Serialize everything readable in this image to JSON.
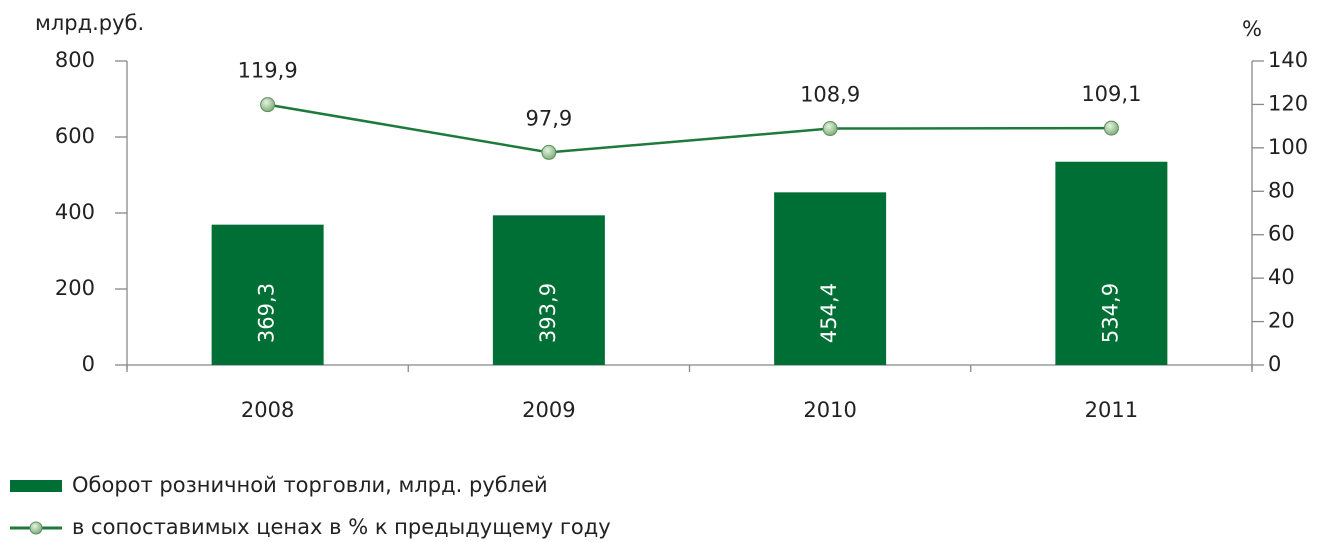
{
  "chart_data": {
    "type": "combo",
    "y_label": "млрд.руб.",
    "y2_label": "%",
    "categories": [
      "2008",
      "2009",
      "2010",
      "2011"
    ],
    "series": [
      {
        "name": "Оборот розничной торговли, млрд. рублей",
        "type": "bar",
        "color": "#006f35",
        "values": [
          369.3,
          393.9,
          454.4,
          534.9
        ],
        "value_labels": [
          "369,3",
          "393,9",
          "454,4",
          "534,9"
        ]
      },
      {
        "name": "в сопоставимых ценах в % к предыдущему году",
        "type": "line",
        "axis": "y2",
        "color": "#1d7a3c",
        "values": [
          119.9,
          97.9,
          108.9,
          109.1
        ],
        "value_labels": [
          "119,9",
          "97,9",
          "108,9",
          "109,1"
        ]
      }
    ],
    "ylim": [
      0,
      800
    ],
    "yticks": [
      0,
      200,
      400,
      600,
      800
    ],
    "y2lim": [
      0,
      140
    ],
    "y2ticks": [
      0,
      20,
      40,
      60,
      80,
      100,
      120,
      140
    ]
  }
}
